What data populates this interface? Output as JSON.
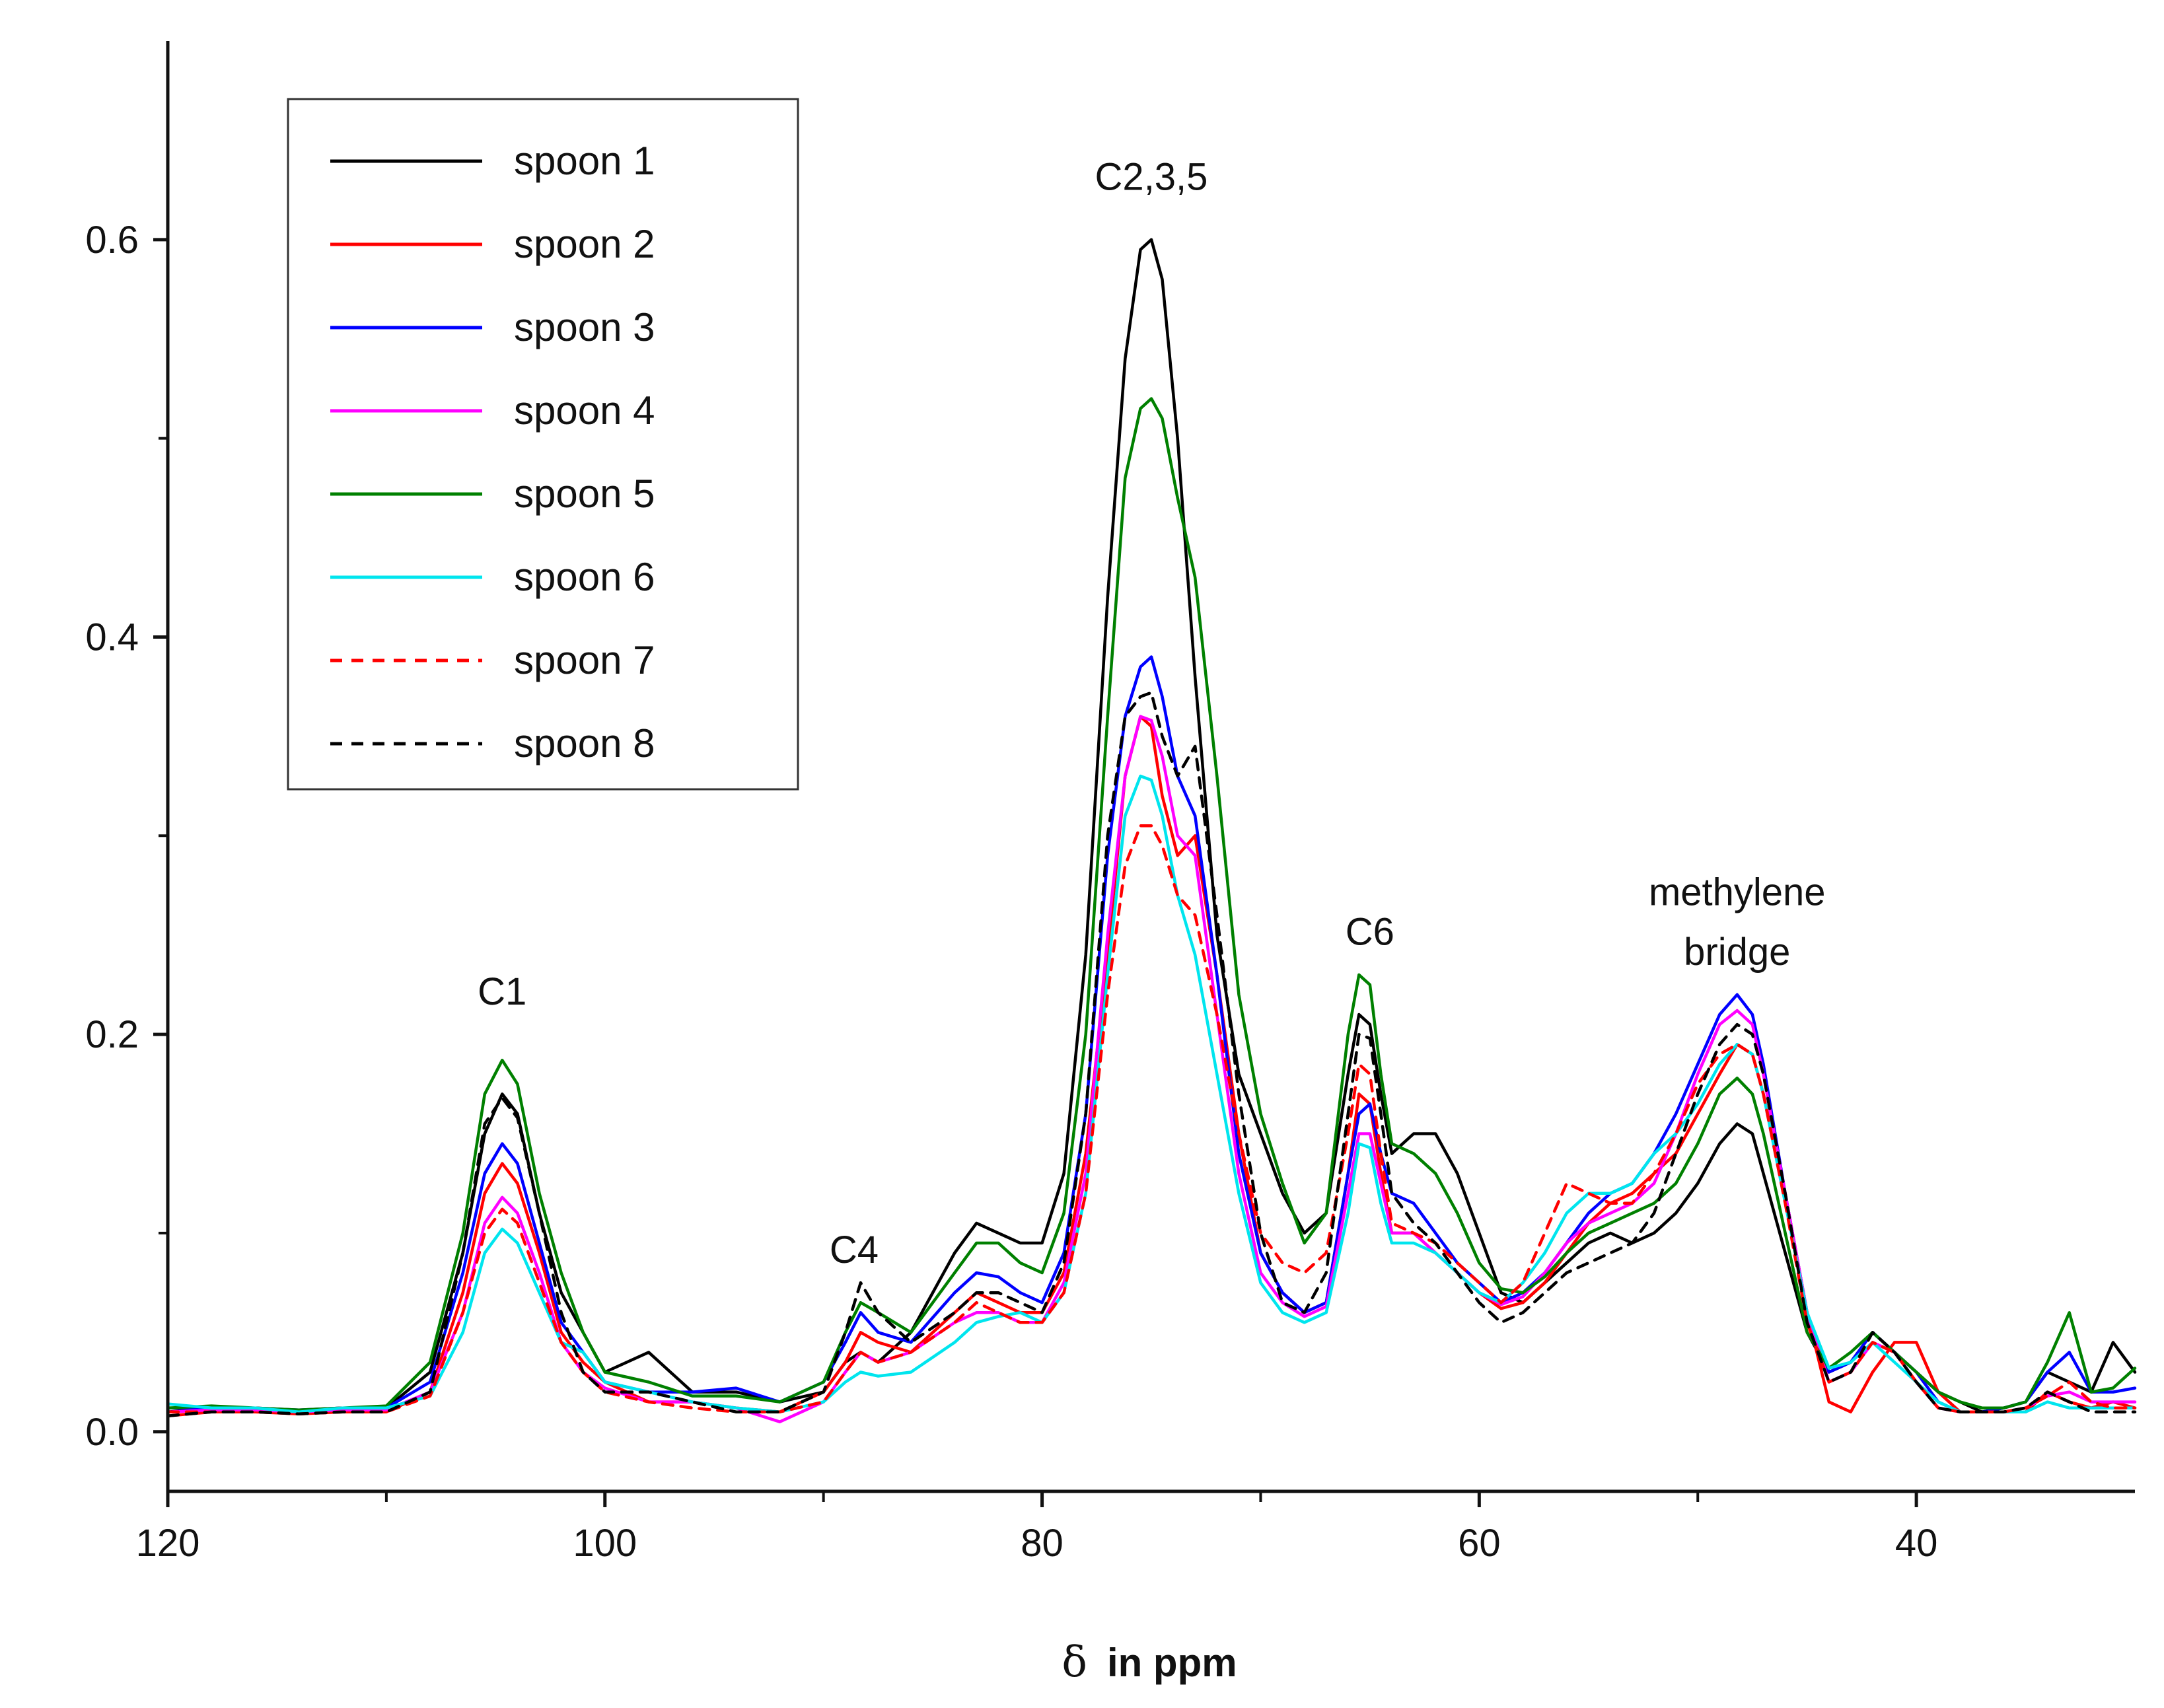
{
  "chart_data": {
    "type": "line",
    "title": "",
    "xlabel_symbol": "δ",
    "xlabel": "in ppm",
    "ylabel": "",
    "xlim": [
      120,
      30
    ],
    "ylim": [
      -0.03,
      0.7
    ],
    "x_ticks": [
      120,
      100,
      80,
      60,
      40
    ],
    "x_tick_labels": [
      "120",
      "100",
      "80",
      "60",
      "40"
    ],
    "y_ticks": [
      0.0,
      0.2,
      0.4,
      0.6
    ],
    "y_tick_labels": [
      "0.0",
      "0.2",
      "0.4",
      "0.6"
    ],
    "legend_position": "top-left",
    "annotations": [
      {
        "text": "C1",
        "x": 104.7,
        "y": 0.215
      },
      {
        "text": "C4",
        "x": 88.6,
        "y": 0.085
      },
      {
        "text": "C2,3,5",
        "x": 75.0,
        "y": 0.625
      },
      {
        "text": "C6",
        "x": 65.0,
        "y": 0.245
      },
      {
        "text": "methylene",
        "x": 48.2,
        "y": 0.265
      },
      {
        "text": "bridge",
        "x": 48.2,
        "y": 0.235
      }
    ],
    "x": [
      120,
      118,
      116,
      114,
      112,
      110,
      108,
      106.5,
      105.5,
      104.7,
      104,
      103,
      102,
      101,
      100,
      98,
      96,
      94,
      92,
      90,
      89,
      88.3,
      87.5,
      86,
      84,
      83,
      82,
      81,
      80,
      79,
      78,
      77,
      76.2,
      75.5,
      75.0,
      74.5,
      73.8,
      73,
      72,
      71,
      70,
      69,
      68,
      67,
      66,
      65.5,
      65,
      64.5,
      64,
      63,
      62,
      61,
      60,
      59,
      58,
      57,
      56,
      55,
      54,
      53,
      52,
      51,
      50,
      49,
      48.2,
      47.5,
      47,
      46,
      45,
      44,
      43,
      42,
      41,
      40,
      39,
      38,
      37,
      36,
      35,
      34,
      33,
      32,
      31,
      30
    ],
    "series": [
      {
        "name": "spoon 1",
        "color": "#000000",
        "dashed": false,
        "values": [
          0.01,
          0.012,
          0.011,
          0.01,
          0.011,
          0.012,
          0.03,
          0.09,
          0.15,
          0.17,
          0.16,
          0.11,
          0.07,
          0.05,
          0.03,
          0.04,
          0.02,
          0.02,
          0.015,
          0.02,
          0.035,
          0.04,
          0.035,
          0.05,
          0.09,
          0.105,
          0.1,
          0.095,
          0.095,
          0.13,
          0.24,
          0.42,
          0.54,
          0.595,
          0.6,
          0.58,
          0.5,
          0.38,
          0.25,
          0.18,
          0.15,
          0.12,
          0.1,
          0.11,
          0.18,
          0.21,
          0.205,
          0.17,
          0.14,
          0.15,
          0.15,
          0.13,
          0.1,
          0.07,
          0.065,
          0.075,
          0.085,
          0.095,
          0.1,
          0.095,
          0.1,
          0.11,
          0.125,
          0.145,
          0.155,
          0.15,
          0.13,
          0.09,
          0.05,
          0.03,
          0.035,
          0.05,
          0.04,
          0.03,
          0.02,
          0.015,
          0.01,
          0.012,
          0.015,
          0.03,
          0.025,
          0.02,
          0.045,
          0.03
        ]
      },
      {
        "name": "spoon 2",
        "color": "#ff0000",
        "dashed": false,
        "values": [
          0.008,
          0.01,
          0.01,
          0.009,
          0.01,
          0.01,
          0.02,
          0.07,
          0.12,
          0.135,
          0.125,
          0.09,
          0.05,
          0.035,
          0.025,
          0.015,
          0.015,
          0.012,
          0.01,
          0.02,
          0.035,
          0.05,
          0.045,
          0.04,
          0.06,
          0.07,
          0.065,
          0.06,
          0.06,
          0.08,
          0.14,
          0.24,
          0.33,
          0.36,
          0.355,
          0.32,
          0.29,
          0.3,
          0.23,
          0.15,
          0.09,
          0.07,
          0.06,
          0.065,
          0.13,
          0.17,
          0.165,
          0.13,
          0.1,
          0.1,
          0.09,
          0.08,
          0.07,
          0.062,
          0.065,
          0.075,
          0.09,
          0.105,
          0.115,
          0.12,
          0.13,
          0.14,
          0.16,
          0.18,
          0.195,
          0.19,
          0.17,
          0.12,
          0.06,
          0.015,
          0.01,
          0.03,
          0.045,
          0.045,
          0.02,
          0.01,
          0.01,
          0.01,
          0.01,
          0.02,
          0.015,
          0.012,
          0.015,
          0.012
        ]
      },
      {
        "name": "spoon 3",
        "color": "#0000ff",
        "dashed": false,
        "values": [
          0.012,
          0.012,
          0.012,
          0.011,
          0.012,
          0.012,
          0.025,
          0.08,
          0.13,
          0.145,
          0.135,
          0.095,
          0.055,
          0.04,
          0.025,
          0.02,
          0.02,
          0.022,
          0.015,
          0.025,
          0.045,
          0.06,
          0.05,
          0.045,
          0.07,
          0.08,
          0.078,
          0.07,
          0.065,
          0.09,
          0.16,
          0.29,
          0.36,
          0.385,
          0.39,
          0.37,
          0.33,
          0.31,
          0.23,
          0.14,
          0.09,
          0.07,
          0.06,
          0.065,
          0.13,
          0.16,
          0.165,
          0.14,
          0.12,
          0.115,
          0.1,
          0.085,
          0.075,
          0.065,
          0.07,
          0.08,
          0.095,
          0.11,
          0.12,
          0.125,
          0.14,
          0.16,
          0.185,
          0.21,
          0.22,
          0.21,
          0.185,
          0.12,
          0.06,
          0.03,
          0.035,
          0.05,
          0.04,
          0.03,
          0.015,
          0.01,
          0.01,
          0.012,
          0.015,
          0.03,
          0.04,
          0.02,
          0.02,
          0.022
        ]
      },
      {
        "name": "spoon 4",
        "color": "#ff00ff",
        "dashed": false,
        "values": [
          0.01,
          0.011,
          0.011,
          0.01,
          0.011,
          0.011,
          0.02,
          0.06,
          0.105,
          0.118,
          0.11,
          0.08,
          0.045,
          0.03,
          0.022,
          0.015,
          0.015,
          0.012,
          0.005,
          0.015,
          0.03,
          0.04,
          0.035,
          0.04,
          0.055,
          0.06,
          0.06,
          0.055,
          0.055,
          0.075,
          0.13,
          0.25,
          0.33,
          0.36,
          0.358,
          0.34,
          0.3,
          0.29,
          0.21,
          0.13,
          0.08,
          0.065,
          0.058,
          0.063,
          0.12,
          0.15,
          0.15,
          0.125,
          0.1,
          0.1,
          0.09,
          0.08,
          0.07,
          0.064,
          0.068,
          0.08,
          0.095,
          0.105,
          0.11,
          0.115,
          0.125,
          0.15,
          0.18,
          0.205,
          0.212,
          0.205,
          0.18,
          0.12,
          0.06,
          0.025,
          0.03,
          0.045,
          0.04,
          0.025,
          0.012,
          0.01,
          0.01,
          0.01,
          0.012,
          0.018,
          0.02,
          0.015,
          0.015,
          0.015
        ]
      },
      {
        "name": "spoon 5",
        "color": "#008000",
        "dashed": false,
        "values": [
          0.012,
          0.013,
          0.012,
          0.011,
          0.012,
          0.013,
          0.035,
          0.1,
          0.17,
          0.187,
          0.175,
          0.12,
          0.08,
          0.05,
          0.03,
          0.025,
          0.018,
          0.018,
          0.015,
          0.025,
          0.05,
          0.065,
          0.06,
          0.05,
          0.08,
          0.095,
          0.095,
          0.085,
          0.08,
          0.11,
          0.2,
          0.36,
          0.48,
          0.515,
          0.52,
          0.51,
          0.47,
          0.43,
          0.33,
          0.22,
          0.16,
          0.125,
          0.095,
          0.11,
          0.2,
          0.23,
          0.225,
          0.18,
          0.145,
          0.14,
          0.13,
          0.11,
          0.085,
          0.072,
          0.07,
          0.078,
          0.09,
          0.1,
          0.105,
          0.11,
          0.115,
          0.125,
          0.145,
          0.17,
          0.178,
          0.17,
          0.15,
          0.1,
          0.05,
          0.032,
          0.04,
          0.05,
          0.04,
          0.03,
          0.02,
          0.015,
          0.012,
          0.012,
          0.015,
          0.035,
          0.06,
          0.02,
          0.022,
          0.032
        ]
      },
      {
        "name": "spoon 6",
        "color": "#00e5ee",
        "dashed": false,
        "values": [
          0.014,
          0.012,
          0.012,
          0.01,
          0.012,
          0.012,
          0.018,
          0.05,
          0.09,
          0.102,
          0.095,
          0.07,
          0.045,
          0.04,
          0.025,
          0.02,
          0.015,
          0.012,
          0.01,
          0.015,
          0.025,
          0.03,
          0.028,
          0.03,
          0.045,
          0.055,
          0.058,
          0.06,
          0.055,
          0.07,
          0.12,
          0.23,
          0.31,
          0.33,
          0.328,
          0.31,
          0.27,
          0.24,
          0.18,
          0.12,
          0.075,
          0.06,
          0.055,
          0.06,
          0.11,
          0.145,
          0.143,
          0.115,
          0.095,
          0.095,
          0.09,
          0.08,
          0.07,
          0.065,
          0.075,
          0.09,
          0.11,
          0.12,
          0.12,
          0.125,
          0.14,
          0.15,
          0.165,
          0.185,
          0.195,
          0.19,
          0.17,
          0.115,
          0.06,
          0.032,
          0.035,
          0.045,
          0.035,
          0.025,
          0.015,
          0.01,
          0.01,
          0.01,
          0.01,
          0.015,
          0.012,
          0.012,
          0.012,
          0.012
        ]
      },
      {
        "name": "spoon 7",
        "color": "#ff0000",
        "dashed": true,
        "values": [
          0.01,
          0.01,
          0.01,
          0.009,
          0.01,
          0.01,
          0.018,
          0.06,
          0.1,
          0.112,
          0.105,
          0.075,
          0.045,
          0.03,
          0.02,
          0.015,
          0.012,
          0.01,
          0.01,
          0.015,
          0.03,
          0.04,
          0.035,
          0.04,
          0.055,
          0.065,
          0.06,
          0.055,
          0.055,
          0.07,
          0.12,
          0.22,
          0.285,
          0.305,
          0.305,
          0.295,
          0.27,
          0.26,
          0.21,
          0.15,
          0.1,
          0.085,
          0.08,
          0.09,
          0.15,
          0.185,
          0.18,
          0.14,
          0.105,
          0.1,
          0.095,
          0.085,
          0.075,
          0.065,
          0.075,
          0.1,
          0.125,
          0.12,
          0.115,
          0.115,
          0.13,
          0.15,
          0.175,
          0.19,
          0.195,
          0.19,
          0.17,
          0.115,
          0.055,
          0.025,
          0.03,
          0.045,
          0.04,
          0.025,
          0.012,
          0.01,
          0.01,
          0.01,
          0.012,
          0.018,
          0.025,
          0.015,
          0.012,
          0.012
        ]
      },
      {
        "name": "spoon 8",
        "color": "#000000",
        "dashed": true,
        "values": [
          0.008,
          0.01,
          0.01,
          0.009,
          0.01,
          0.01,
          0.02,
          0.09,
          0.155,
          0.168,
          0.158,
          0.11,
          0.06,
          0.03,
          0.02,
          0.02,
          0.015,
          0.01,
          0.01,
          0.02,
          0.05,
          0.075,
          0.06,
          0.045,
          0.06,
          0.07,
          0.07,
          0.065,
          0.06,
          0.085,
          0.16,
          0.3,
          0.36,
          0.37,
          0.372,
          0.35,
          0.33,
          0.345,
          0.26,
          0.17,
          0.1,
          0.065,
          0.06,
          0.08,
          0.16,
          0.2,
          0.198,
          0.16,
          0.12,
          0.105,
          0.095,
          0.08,
          0.065,
          0.055,
          0.06,
          0.07,
          0.08,
          0.085,
          0.09,
          0.095,
          0.11,
          0.14,
          0.17,
          0.195,
          0.205,
          0.2,
          0.18,
          0.12,
          0.055,
          0.025,
          0.03,
          0.05,
          0.04,
          0.025,
          0.012,
          0.01,
          0.01,
          0.01,
          0.012,
          0.02,
          0.015,
          0.01,
          0.01,
          0.01
        ]
      }
    ]
  }
}
